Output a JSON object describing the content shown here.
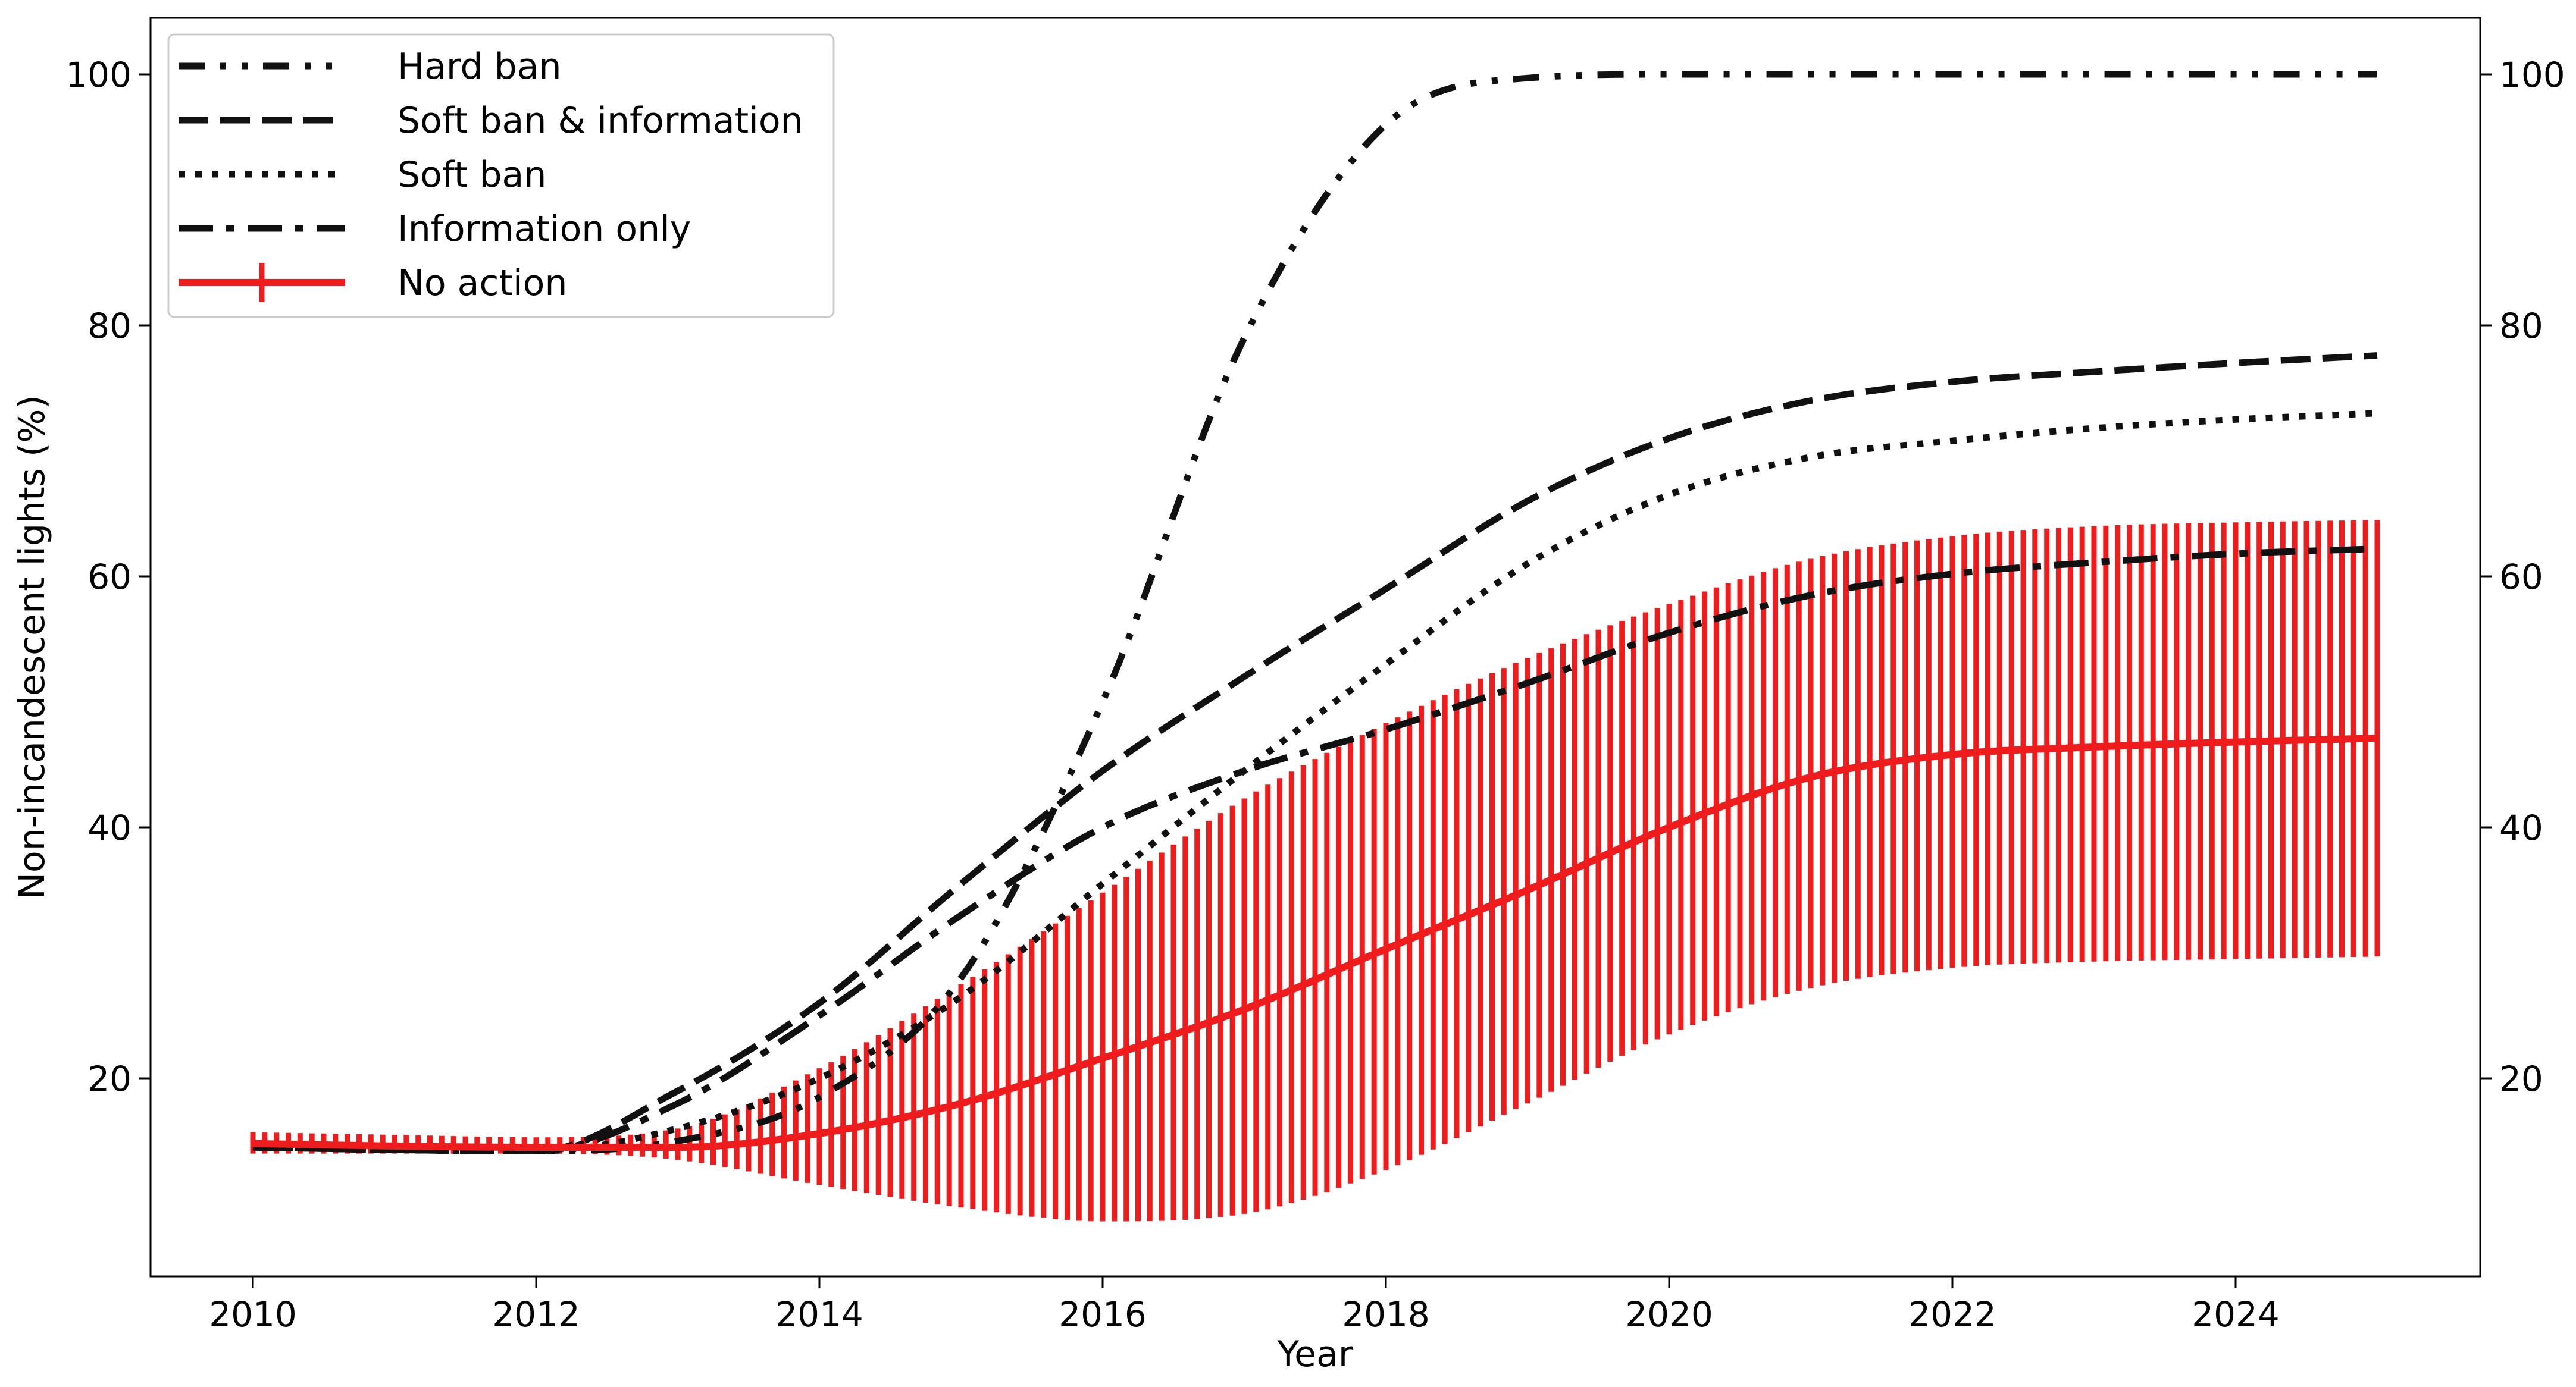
{
  "chart_data": {
    "type": "line",
    "xlabel": "Year",
    "ylabel": "Non-incandescent lights (%)",
    "xlim": [
      2009.3,
      2025.7
    ],
    "ylim": [
      4.8,
      105
    ],
    "x_ticks": [
      2010,
      2012,
      2014,
      2016,
      2018,
      2020,
      2022,
      2024
    ],
    "y_ticks": [
      20,
      40,
      60,
      80,
      100
    ],
    "y_ticks_right": [
      20,
      40,
      60,
      80,
      100
    ],
    "grid": false,
    "legend": {
      "placement": "top-left",
      "entries": [
        "Hard ban",
        "Soft ban & information",
        "Soft ban",
        "Information only",
        "No action"
      ]
    },
    "x": [
      2010,
      2011,
      2012,
      2013,
      2014,
      2015,
      2016,
      2017,
      2018,
      2019,
      2020,
      2021,
      2022,
      2023,
      2024,
      2025
    ],
    "series": [
      {
        "name": "Hard ban",
        "style": "dash-dot-dot",
        "color": "#111111",
        "values": [
          14.5,
          14.3,
          14.2,
          15.0,
          18.5,
          28.0,
          50.0,
          79.0,
          96.0,
          99.7,
          100,
          100,
          100,
          100,
          100,
          100
        ]
      },
      {
        "name": "Soft ban & information",
        "style": "dashed",
        "color": "#111111",
        "values": [
          14.5,
          14.3,
          14.2,
          19.0,
          26.0,
          35.5,
          44.5,
          52.0,
          59.0,
          66.0,
          71.0,
          74.0,
          75.5,
          76.3,
          77.0,
          77.6
        ]
      },
      {
        "name": "Soft ban",
        "style": "dotted",
        "color": "#111111",
        "values": [
          14.5,
          14.3,
          14.2,
          16.0,
          20.0,
          26.5,
          35.5,
          44.5,
          53.0,
          61.0,
          66.5,
          69.5,
          70.8,
          71.8,
          72.5,
          73.0
        ]
      },
      {
        "name": "Information only",
        "style": "dash-dot",
        "color": "#111111",
        "values": [
          14.5,
          14.3,
          14.2,
          18.0,
          25.0,
          33.0,
          40.0,
          44.5,
          47.8,
          51.5,
          55.5,
          58.5,
          60.2,
          61.1,
          61.8,
          62.2
        ]
      },
      {
        "name": "No action",
        "style": "solid",
        "color": "#ee1c1c",
        "values": [
          14.8,
          14.6,
          14.5,
          14.5,
          15.6,
          18.0,
          21.6,
          25.5,
          30.3,
          35.0,
          40.0,
          44.0,
          45.8,
          46.4,
          46.8,
          47.1
        ],
        "error_upper": [
          15.7,
          15.5,
          15.3,
          16.0,
          20.8,
          27.5,
          34.8,
          42.3,
          48.3,
          53.5,
          57.8,
          61.4,
          63.2,
          64.0,
          64.3,
          64.5
        ],
        "error_lower": [
          14.0,
          14.0,
          14.0,
          13.5,
          11.5,
          9.7,
          8.6,
          9.2,
          12.7,
          18.0,
          23.5,
          27.2,
          28.8,
          29.3,
          29.5,
          29.7
        ]
      }
    ]
  }
}
